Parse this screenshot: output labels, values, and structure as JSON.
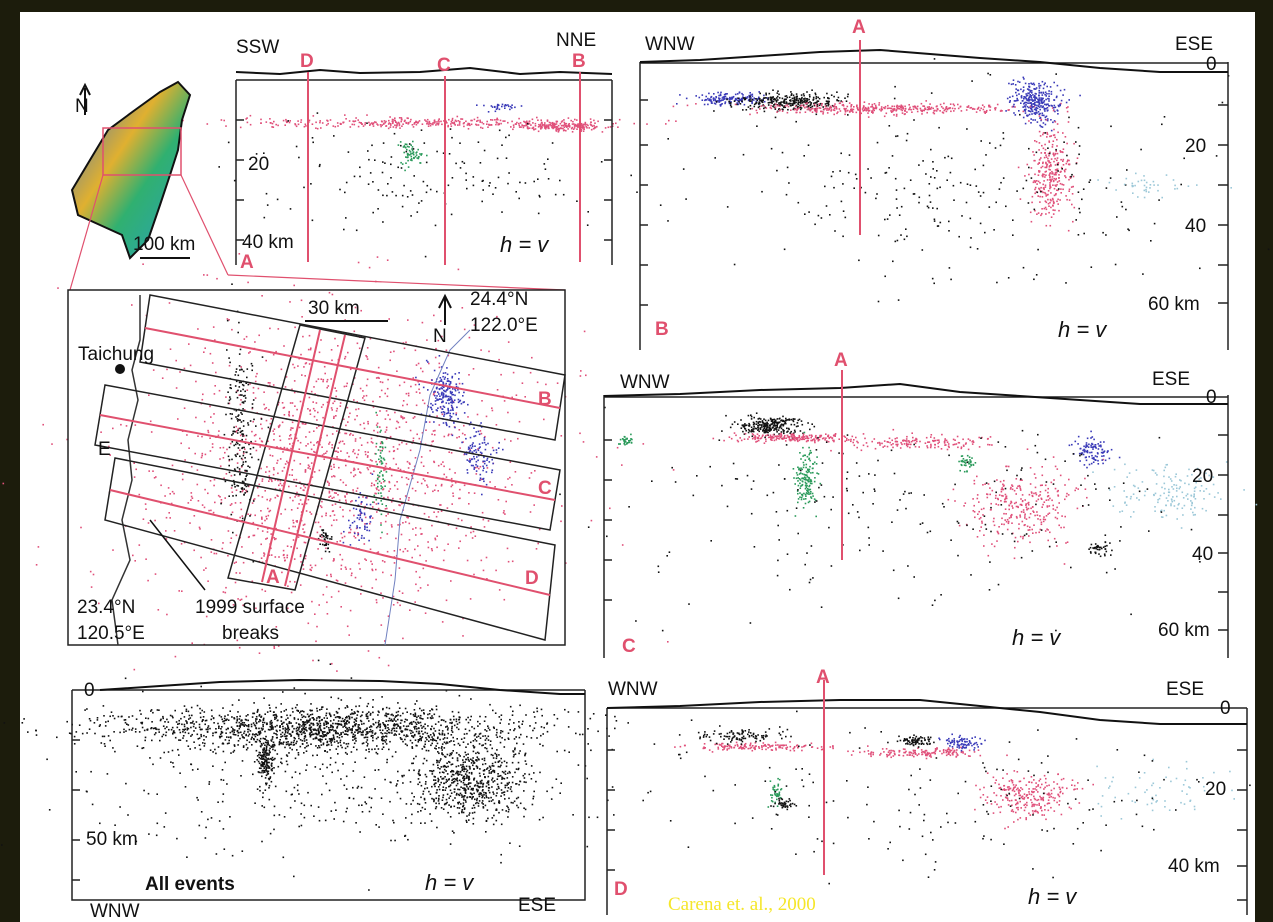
{
  "credit": "Carena et. al., 2000",
  "inset": {
    "north": "N",
    "scale": "100 km"
  },
  "map": {
    "scale": "30 km",
    "north": "N",
    "ne_corner": [
      "24.4°N",
      "122.0°E"
    ],
    "sw_corner": [
      "23.4°N",
      "120.5°E"
    ],
    "city": "Taichung",
    "fault_label": "E",
    "annotation": [
      "1999 surface",
      "breaks"
    ],
    "profiles": [
      "A",
      "B",
      "C",
      "D"
    ]
  },
  "panels": [
    {
      "label": "A",
      "left": "SSW",
      "right": "NNE",
      "markers": [
        "D",
        "C",
        "B"
      ],
      "depths": [
        "20",
        "40 km"
      ],
      "note": "h = v"
    },
    {
      "label": "B",
      "left": "WNW",
      "right": "ESE",
      "markers": [
        "A"
      ],
      "depths": [
        "0",
        "20",
        "40",
        "60 km"
      ],
      "note": "h = v"
    },
    {
      "label": "C",
      "left": "WNW",
      "right": "ESE",
      "markers": [
        "A"
      ],
      "depths": [
        "0",
        "20",
        "40",
        "60 km"
      ],
      "note": "h = v"
    },
    {
      "label": "All events",
      "left": "WNW",
      "right": "ESE",
      "depths": [
        "0",
        "50 km"
      ],
      "note": "h = v"
    },
    {
      "label": "D",
      "left": "WNW",
      "right": "ESE",
      "markers": [
        "A"
      ],
      "depths": [
        "0",
        "20",
        "40 km"
      ],
      "note": "h = v"
    }
  ]
}
